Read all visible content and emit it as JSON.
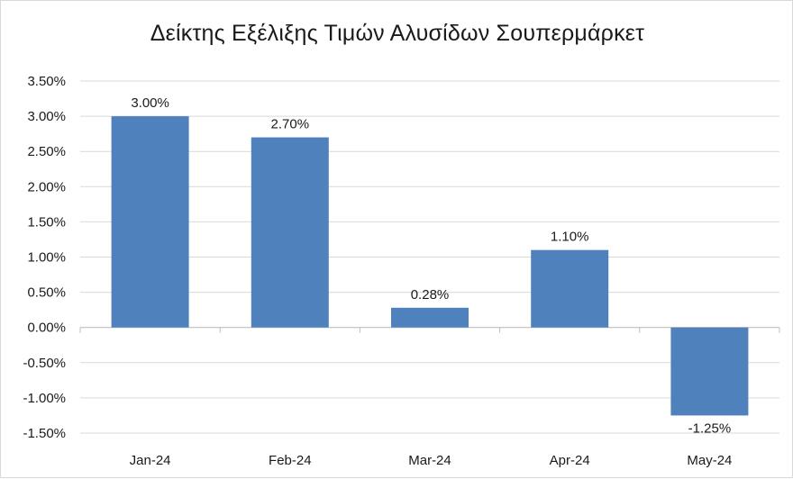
{
  "chart_data": {
    "type": "bar",
    "title": "Δείκτης Εξέλιξης Τιμών Αλυσίδων Σουπερμάρκετ",
    "xlabel": "",
    "ylabel": "",
    "categories": [
      "Jan-24",
      "Feb-24",
      "Mar-24",
      "Apr-24",
      "May-24"
    ],
    "values": [
      3.0,
      2.7,
      0.28,
      1.1,
      -1.25
    ],
    "data_labels": [
      "3.00%",
      "2.70%",
      "0.28%",
      "1.10%",
      "-1.25%"
    ],
    "ylim": [
      -1.5,
      3.5
    ],
    "yticks": [
      3.5,
      3.0,
      2.5,
      2.0,
      1.5,
      1.0,
      0.5,
      0.0,
      -0.5,
      -1.0,
      -1.5
    ],
    "ytick_labels": [
      "3.50%",
      "3.00%",
      "2.50%",
      "2.00%",
      "1.50%",
      "1.00%",
      "0.50%",
      "0.00%",
      "-0.50%",
      "-1.00%",
      "-1.50%"
    ],
    "grid": true,
    "legend": "none",
    "colors": {
      "bar": "#4f81bd",
      "grid": "#d9d9d9",
      "axis": "#bfbfbf"
    }
  }
}
